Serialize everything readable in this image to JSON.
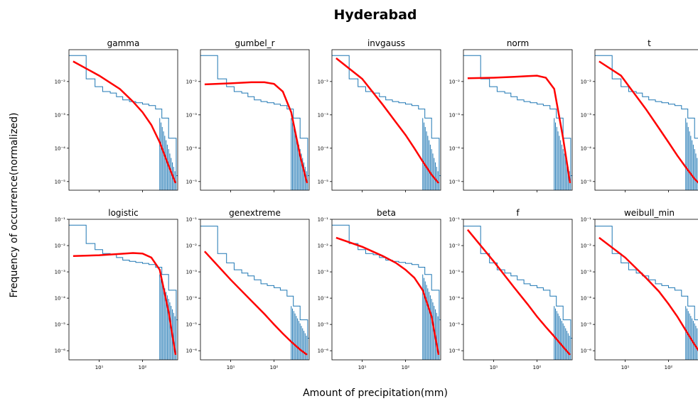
{
  "figure": {
    "title": "Hyderabad",
    "xlabel": "Amount of precipitation(mm)",
    "ylabel": "Frequency of occurrence(normalized)"
  },
  "chart_data": {
    "type": "line",
    "xscale": "log",
    "yscale": "log",
    "xlim": [
      2,
      650
    ],
    "rows": [
      {
        "ylim": [
          5.5e-06,
          0.09
        ],
        "yticks": [
          "10⁻⁵",
          "10⁻⁴",
          "10⁻³",
          "10⁻²"
        ],
        "ytick_values": [
          1e-05,
          0.0001,
          0.001,
          0.01
        ]
      },
      {
        "ylim": [
          4.5e-07,
          0.1
        ],
        "yticks": [
          "10⁻⁶",
          "10⁻⁵",
          "10⁻⁴",
          "10⁻³",
          "10⁻²",
          "10⁻¹"
        ],
        "ytick_values": [
          1e-06,
          1e-05,
          0.0001,
          0.001,
          0.01,
          0.1
        ]
      }
    ],
    "xticks": [
      "10¹",
      "10²"
    ],
    "xtick_values": [
      10,
      100
    ],
    "fit_color": "#ff0000",
    "hist_color": "#1f77b4",
    "histograms": [
      {
        "x": [
          2,
          5,
          8,
          12,
          18,
          25,
          35,
          50,
          70,
          100,
          140,
          200,
          280,
          400,
          600
        ],
        "y": [
          0.06,
          0.012,
          0.007,
          0.005,
          0.0045,
          0.0035,
          0.0028,
          0.0025,
          0.0023,
          0.0021,
          0.0019,
          0.0015,
          0.0008,
          0.0002,
          1.5e-05
        ]
      },
      {
        "x": [
          2,
          5,
          8,
          12,
          18,
          25,
          35,
          50,
          70,
          100,
          140,
          200,
          280,
          400,
          600
        ],
        "y": [
          0.055,
          0.005,
          0.0022,
          0.0012,
          0.0009,
          0.0007,
          0.0005,
          0.00035,
          0.0003,
          0.00025,
          0.0002,
          0.00012,
          5e-05,
          1.5e-05,
          3e-06
        ]
      }
    ],
    "panels": [
      {
        "row": 0,
        "col": 0,
        "name": "gamma",
        "hist": 0,
        "fit": {
          "x": [
            2.5,
            10,
            30,
            60,
            100,
            160,
            250,
            400,
            580
          ],
          "y": [
            0.04,
            0.015,
            0.006,
            0.0025,
            0.0012,
            0.0005,
            0.00015,
            3e-05,
            9e-06
          ]
        }
      },
      {
        "row": 0,
        "col": 1,
        "name": "gumbel_r",
        "hist": 0,
        "fit": {
          "x": [
            2.5,
            10,
            30,
            60,
            100,
            160,
            250,
            400,
            580
          ],
          "y": [
            0.0082,
            0.0088,
            0.0095,
            0.0095,
            0.0085,
            0.005,
            0.0012,
            6e-05,
            9e-06
          ]
        }
      },
      {
        "row": 0,
        "col": 2,
        "name": "invgauss",
        "hist": 0,
        "fit": {
          "x": [
            2.5,
            10,
            30,
            60,
            100,
            160,
            250,
            400,
            580
          ],
          "y": [
            0.05,
            0.012,
            0.002,
            0.0006,
            0.00025,
            0.0001,
            4e-05,
            1.6e-05,
            9e-06
          ]
        }
      },
      {
        "row": 0,
        "col": 3,
        "name": "norm",
        "hist": 0,
        "fit": {
          "x": [
            2.5,
            10,
            30,
            60,
            100,
            160,
            250,
            400,
            580
          ],
          "y": [
            0.0125,
            0.013,
            0.0138,
            0.0145,
            0.015,
            0.013,
            0.006,
            0.0002,
            9e-06
          ]
        }
      },
      {
        "row": 0,
        "col": 4,
        "name": "t",
        "hist": 0,
        "fit": {
          "x": [
            2.5,
            8,
            30,
            60,
            100,
            160,
            250,
            400,
            580
          ],
          "y": [
            0.04,
            0.015,
            0.0015,
            0.0004,
            0.00015,
            6e-05,
            2.7e-05,
            1.2e-05,
            7.5e-06
          ]
        }
      },
      {
        "row": 1,
        "col": 0,
        "name": "logistic",
        "hist": 0,
        "fit": {
          "x": [
            2.5,
            10,
            30,
            60,
            100,
            160,
            250,
            400,
            580
          ],
          "y": [
            0.004,
            0.0043,
            0.0048,
            0.0052,
            0.005,
            0.0035,
            0.0012,
            3e-05,
            7e-07
          ]
        }
      },
      {
        "row": 1,
        "col": 1,
        "name": "genextreme",
        "hist": 1,
        "fit": {
          "x": [
            2.5,
            10,
            30,
            60,
            100,
            160,
            250,
            400,
            580
          ],
          "y": [
            0.006,
            0.0005,
            8e-05,
            2.5e-05,
            1e-05,
            4.5e-06,
            2.2e-06,
            1.1e-06,
            7e-07
          ]
        }
      },
      {
        "row": 1,
        "col": 2,
        "name": "beta",
        "hist": 0,
        "fit": {
          "x": [
            2.5,
            10,
            30,
            60,
            100,
            160,
            250,
            400,
            580
          ],
          "y": [
            0.02,
            0.009,
            0.004,
            0.0022,
            0.0012,
            0.0006,
            0.0002,
            2e-05,
            7e-07
          ]
        }
      },
      {
        "row": 1,
        "col": 3,
        "name": "f",
        "hist": 1,
        "fit": {
          "x": [
            2.5,
            10,
            30,
            60,
            100,
            160,
            250,
            400,
            580
          ],
          "y": [
            0.04,
            0.0025,
            0.00025,
            6e-05,
            2e-05,
            8e-06,
            3.5e-06,
            1.4e-06,
            7e-07
          ]
        }
      },
      {
        "row": 1,
        "col": 4,
        "name": "weibull_min",
        "hist": 1,
        "fit": {
          "x": [
            2.5,
            10,
            30,
            60,
            100,
            160,
            250,
            400,
            580
          ],
          "y": [
            0.02,
            0.0035,
            0.0006,
            0.00018,
            6e-05,
            2e-05,
            6e-06,
            1.7e-06,
            7e-07
          ]
        }
      }
    ]
  }
}
